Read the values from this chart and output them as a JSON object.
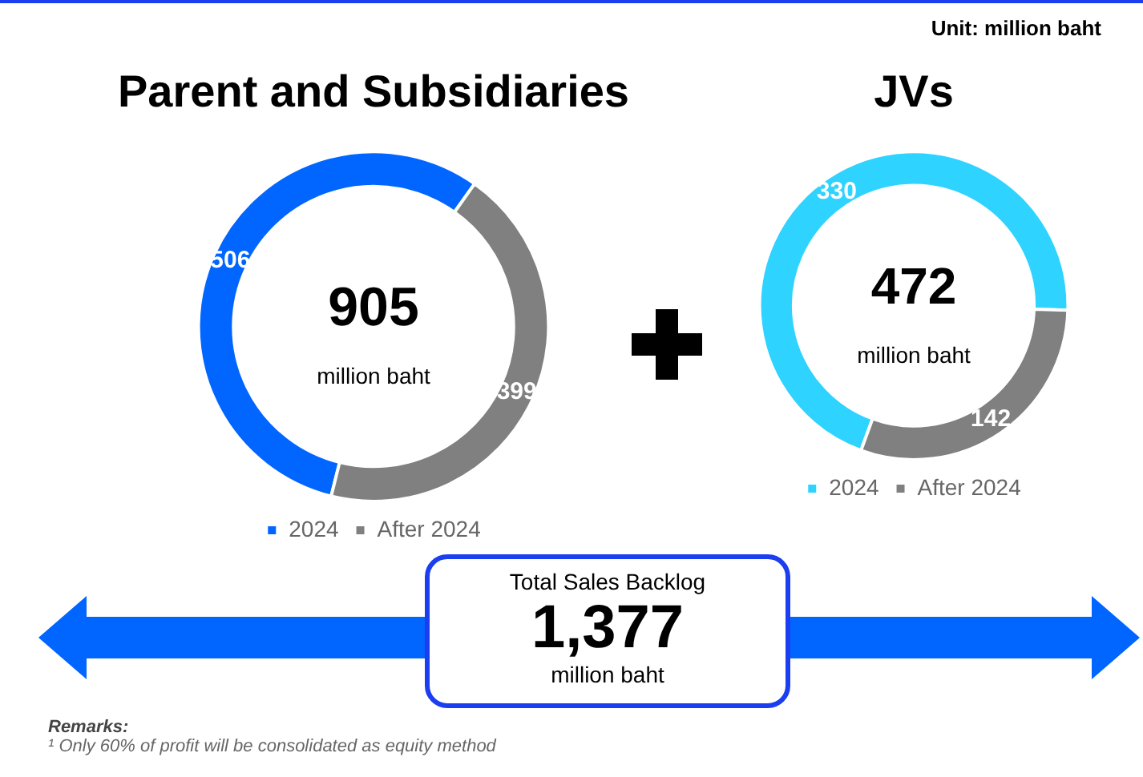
{
  "chart_data": [
    {
      "type": "donut",
      "title": "Parent and Subsidiaries",
      "categories": [
        "2024",
        "After 2024"
      ],
      "values": [
        506,
        399
      ],
      "colors": [
        "#0066ff",
        "#808080"
      ],
      "data_labels": true,
      "legend": "bottom",
      "annotations": [
        "905",
        "million baht"
      ]
    },
    {
      "type": "donut",
      "title": "JVs",
      "categories": [
        "2024",
        "After 2024"
      ],
      "values": [
        330,
        142
      ],
      "colors": [
        "#2ed3ff",
        "#808080"
      ],
      "data_labels": true,
      "legend": "bottom",
      "annotations": [
        "472",
        "million baht"
      ]
    },
    {
      "type": "other",
      "title": "Total Sales Backlog",
      "annotations": [
        "1,377",
        "million baht",
        "Unit: million baht",
        "Remarks:",
        "¹ Only 60% of profit will be consolidated as equity method"
      ]
    }
  ]
}
